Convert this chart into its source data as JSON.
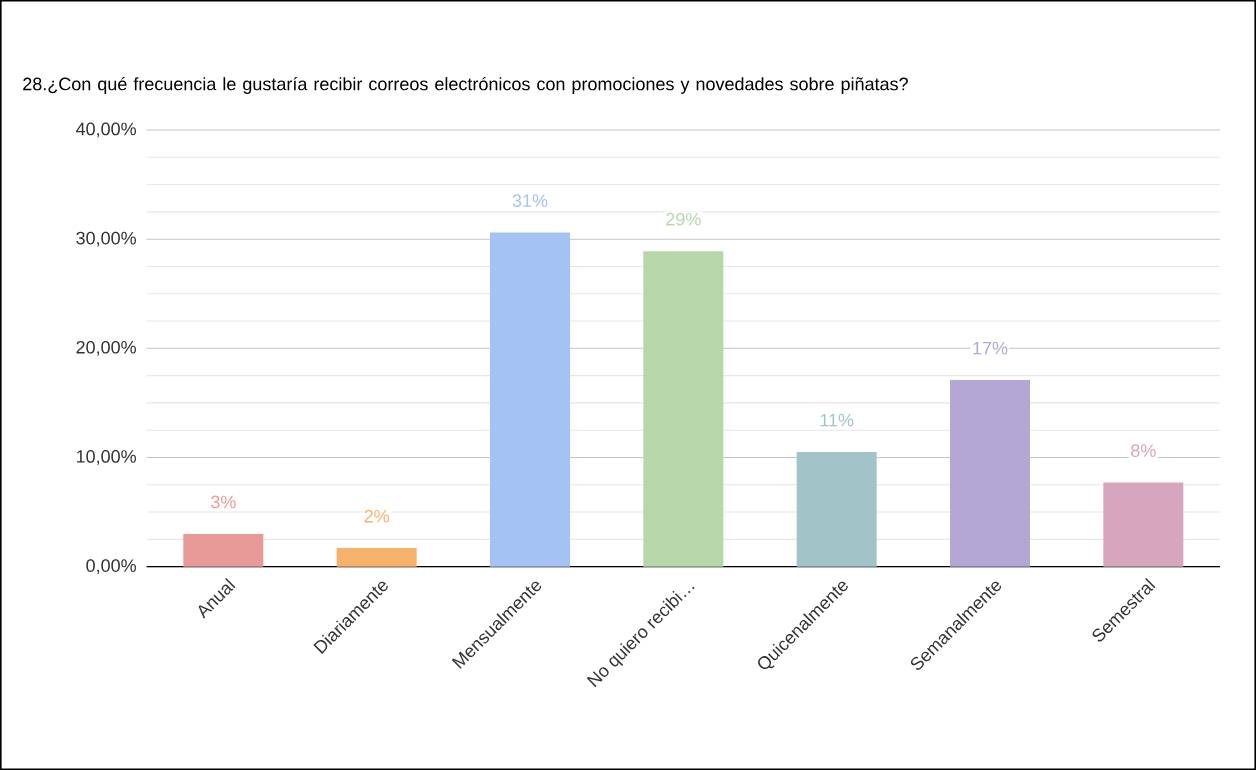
{
  "chart_data": {
    "type": "bar",
    "title": "28.¿Con qué frecuencia le gustaría recibir correos electrónicos con promociones y novedades sobre piñatas?",
    "categories": [
      "Anual",
      "Diariamente",
      "Mensualmente",
      "No quiero recibi…",
      "Quicenalmente",
      "Semanalmente",
      "Semestral"
    ],
    "values": [
      3.0,
      1.7,
      30.6,
      28.9,
      10.5,
      17.1,
      7.7
    ],
    "colors": [
      "#e89a98",
      "#f6b26b",
      "#a4c2f4",
      "#b6d7a8",
      "#a2c4c9",
      "#b4a7d6",
      "#d5a6bd"
    ],
    "value_labels": [
      "3%",
      "2%",
      "31%",
      "29%",
      "11%",
      "17%",
      "8%"
    ],
    "ylim": [
      0,
      40
    ],
    "yticks": [
      {
        "value": 0,
        "label": "0,00%"
      },
      {
        "value": 10,
        "label": "10,00%"
      },
      {
        "value": 20,
        "label": "20,00%"
      },
      {
        "value": 30,
        "label": "30,00%"
      },
      {
        "value": 40,
        "label": "40,00%"
      }
    ],
    "grid": "y"
  }
}
